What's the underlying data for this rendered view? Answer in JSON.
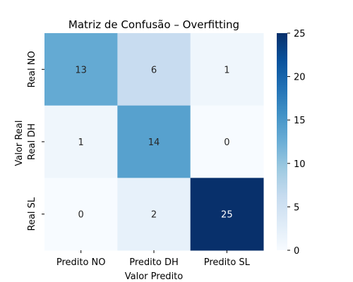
{
  "chart_data": {
    "type": "heatmap",
    "title": "Matriz de Confusão – Overfitting",
    "xlabel": "Valor Predito",
    "ylabel": "Valor Real",
    "x_categories": [
      "Predito NO",
      "Predito DH",
      "Predito SL"
    ],
    "y_categories": [
      "Real NO",
      "Real DH",
      "Real SL"
    ],
    "values": [
      [
        13,
        6,
        1
      ],
      [
        1,
        14,
        0
      ],
      [
        0,
        2,
        25
      ]
    ],
    "colormap": "Blues",
    "vmin": 0,
    "vmax": 25,
    "colorbar_ticks": [
      0,
      5,
      10,
      15,
      20,
      25
    ],
    "annotate": true,
    "grid": false
  }
}
